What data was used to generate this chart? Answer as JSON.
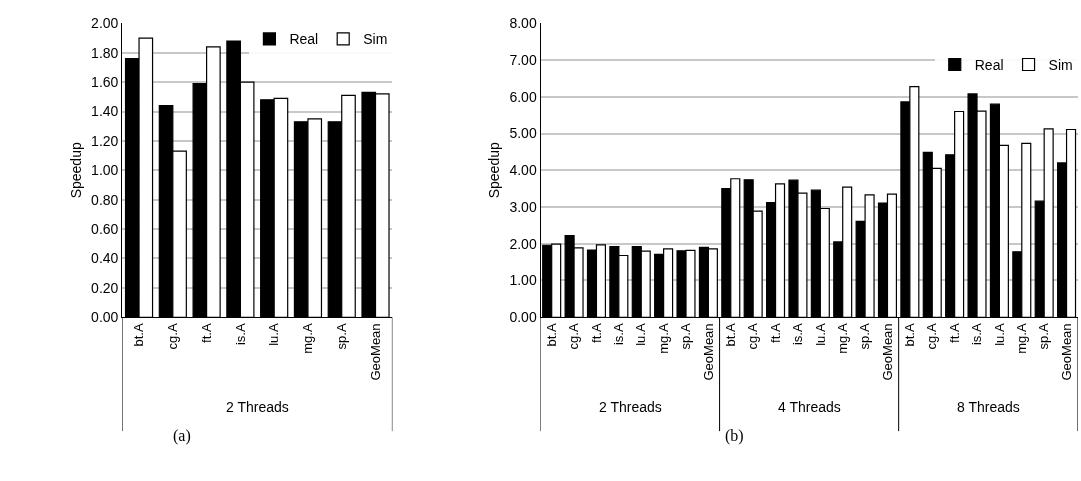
{
  "chart_data": [
    {
      "type": "bar",
      "ylabel": "Speedup",
      "categories": [
        "bt.A",
        "cg.A",
        "ft.A",
        "is.A",
        "lu.A",
        "mg.A",
        "sp.A",
        "GeoMean"
      ],
      "series": [
        {
          "name": "Real",
          "color": "#000000",
          "values": [
            1.76,
            1.44,
            1.59,
            1.88,
            1.48,
            1.33,
            1.33,
            1.53
          ]
        },
        {
          "name": "Sim",
          "color": "#ffffff",
          "values": [
            1.9,
            1.13,
            1.84,
            1.6,
            1.49,
            1.35,
            1.51,
            1.52
          ]
        }
      ],
      "ylim": [
        0,
        2
      ],
      "yticks": [
        {
          "value": 0,
          "label": "0.00"
        },
        {
          "value": 0.2,
          "label": "0.20"
        },
        {
          "value": 0.4,
          "label": "0.40"
        },
        {
          "value": 0.6,
          "label": "0.60"
        },
        {
          "value": 0.8,
          "label": "0.80"
        },
        {
          "value": 1,
          "label": "1.00"
        },
        {
          "value": 1.2,
          "label": "1.20"
        },
        {
          "value": 1.4,
          "label": "1.40"
        },
        {
          "value": 1.6,
          "label": "1.60"
        },
        {
          "value": 1.8,
          "label": "1.80"
        },
        {
          "value": 2,
          "label": "2.00"
        }
      ],
      "grid": "y",
      "legend": "top right",
      "annotations": [
        "2 Threads",
        "(a)"
      ]
    },
    {
      "type": "bar",
      "ylabel": "Speedup",
      "categories": [
        "bt.A",
        "cg.A",
        "ft.A",
        "is.A",
        "lu.A",
        "mg.A",
        "sp.A",
        "GeoMean",
        "bt.A",
        "cg.A",
        "ft.A",
        "is.A",
        "lu.A",
        "mg.A",
        "sp.A",
        "GeoMean",
        "bt.A",
        "cg.A",
        "ft.A",
        "is.A",
        "lu.A",
        "mg.A",
        "sp.A",
        "GeoMean"
      ],
      "series": [
        {
          "name": "Real",
          "color": "#000000",
          "values": [
            1.96,
            2.22,
            1.83,
            1.92,
            1.92,
            1.71,
            1.81,
            1.9,
            3.5,
            3.74,
            3.12,
            3.73,
            3.46,
            2.05,
            2.61,
            3.11,
            5.86,
            4.49,
            4.42,
            6.08,
            5.8,
            1.78,
            3.16,
            4.2
          ]
        },
        {
          "name": "Sim",
          "color": "#ffffff",
          "values": [
            1.99,
            1.89,
            1.97,
            1.68,
            1.8,
            1.86,
            1.82,
            1.86,
            3.77,
            2.89,
            3.63,
            3.38,
            2.96,
            3.54,
            3.33,
            3.35,
            6.28,
            4.05,
            5.6,
            5.61,
            4.68,
            4.73,
            5.13,
            5.11
          ]
        }
      ],
      "ylim": [
        0,
        8
      ],
      "yticks": [
        {
          "value": 0,
          "label": "0.00"
        },
        {
          "value": 1,
          "label": "1.00"
        },
        {
          "value": 2,
          "label": "2.00"
        },
        {
          "value": 3,
          "label": "3.00"
        },
        {
          "value": 4,
          "label": "4.00"
        },
        {
          "value": 5,
          "label": "5.00"
        },
        {
          "value": 6,
          "label": "6.00"
        },
        {
          "value": 7,
          "label": "7.00"
        },
        {
          "value": 8,
          "label": "8.00"
        }
      ],
      "grid": "y",
      "legend": "top right",
      "annotations": [
        "2 Threads",
        "4 Threads",
        "8 Threads",
        "(b)"
      ]
    }
  ]
}
